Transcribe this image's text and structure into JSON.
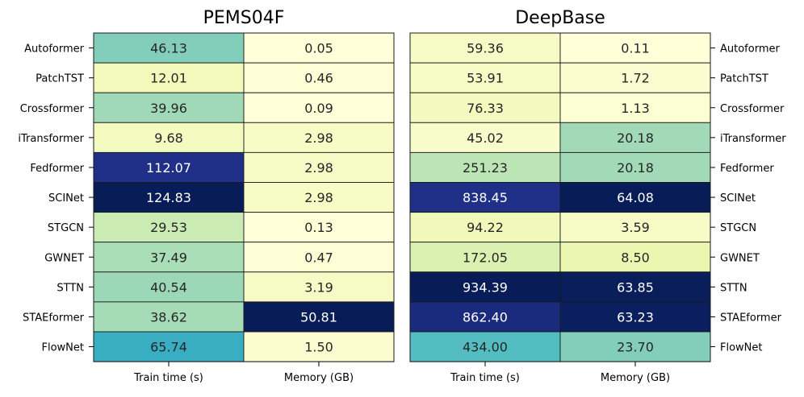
{
  "chart_data": {
    "type": "heatmap",
    "rows": [
      "Autoformer",
      "PatchTST",
      "Crossformer",
      "iTransformer",
      "Fedformer",
      "SCINet",
      "STGCN",
      "GWNET",
      "STTN",
      "STAEformer",
      "FlowNet"
    ],
    "columns": [
      "Train time (s)",
      "Memory (GB)"
    ],
    "colormap": "YlGnBu",
    "panels": [
      {
        "title": "PEMS04F",
        "row_label_side": "left",
        "values": [
          [
            46.13,
            0.05
          ],
          [
            12.01,
            0.46
          ],
          [
            39.96,
            0.09
          ],
          [
            9.68,
            2.98
          ],
          [
            112.07,
            2.98
          ],
          [
            124.83,
            2.98
          ],
          [
            29.53,
            0.13
          ],
          [
            37.49,
            0.47
          ],
          [
            40.54,
            3.19
          ],
          [
            38.62,
            50.81
          ],
          [
            65.74,
            1.5
          ]
        ]
      },
      {
        "title": "DeepBase",
        "row_label_side": "right",
        "values": [
          [
            59.36,
            0.11
          ],
          [
            53.91,
            1.72
          ],
          [
            76.33,
            1.13
          ],
          [
            45.02,
            20.18
          ],
          [
            251.23,
            20.18
          ],
          [
            838.45,
            64.08
          ],
          [
            94.22,
            3.59
          ],
          [
            172.05,
            8.5
          ],
          [
            934.39,
            63.85
          ],
          [
            862.4,
            63.23
          ],
          [
            434.0,
            23.7
          ]
        ]
      }
    ]
  }
}
